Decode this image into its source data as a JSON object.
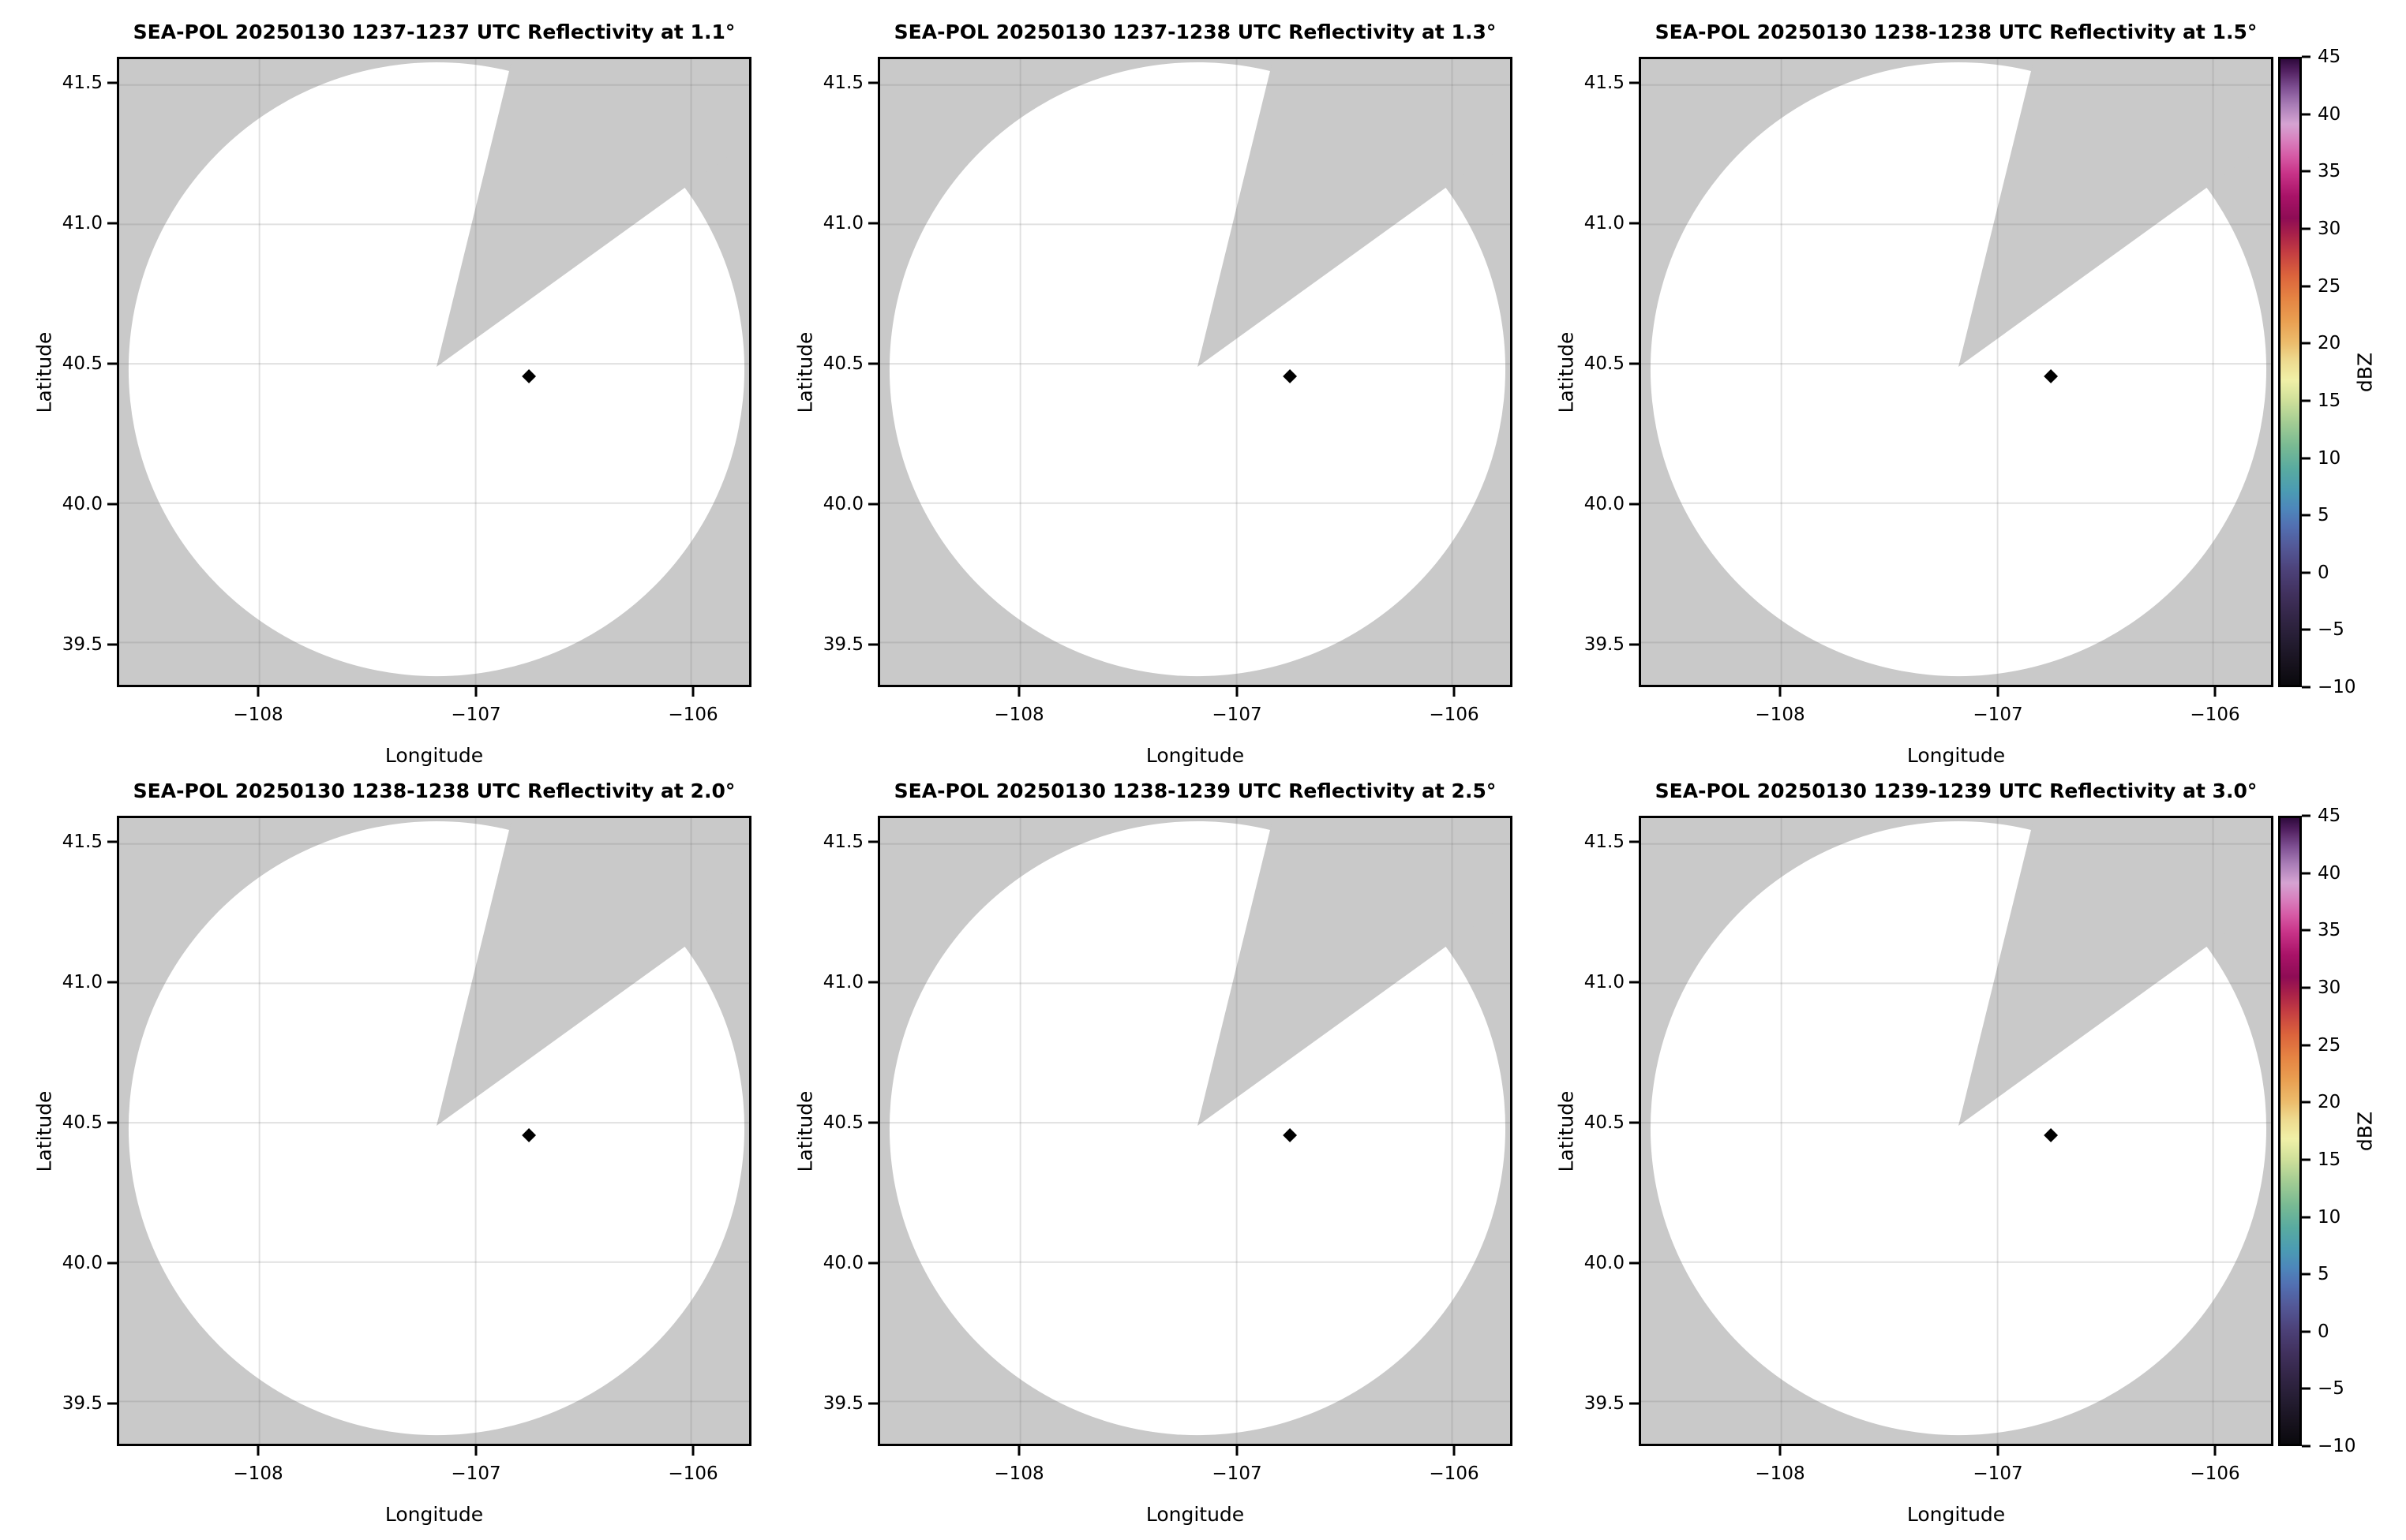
{
  "colors": {
    "figure_bg": "#ffffff",
    "nodata_gray": "#c9c9c9",
    "covered_white": "#ffffff",
    "spine": "#000000",
    "marker_black": "#000000",
    "grid_line": "rgba(120,120,120,0.22)"
  },
  "axes": {
    "xlabel": "Longitude",
    "ylabel": "Latitude",
    "lat_ticks": [
      "41.5",
      "41.0",
      "40.5",
      "40.0",
      "39.5"
    ],
    "lon_ticks": [
      "−108",
      "−107",
      "−106"
    ]
  },
  "panels": [
    {
      "title": "SEA-POL 20250130 1237-1237 UTC Reflectivity at 1.1°",
      "time_utc": "1237-1237",
      "elevation_deg": 1.1
    },
    {
      "title": "SEA-POL 20250130 1237-1238 UTC Reflectivity at 1.3°",
      "time_utc": "1237-1238",
      "elevation_deg": 1.3
    },
    {
      "title": "SEA-POL 20250130 1238-1238 UTC Reflectivity at 1.5°",
      "time_utc": "1238-1238",
      "elevation_deg": 1.5
    },
    {
      "title": "SEA-POL 20250130 1238-1238 UTC Reflectivity at 2.0°",
      "time_utc": "1238-1238",
      "elevation_deg": 2.0
    },
    {
      "title": "SEA-POL 20250130 1238-1239 UTC Reflectivity at 2.5°",
      "time_utc": "1238-1239",
      "elevation_deg": 2.5
    },
    {
      "title": "SEA-POL 20250130 1239-1239 UTC Reflectivity at 3.0°",
      "time_utc": "1239-1239",
      "elevation_deg": 3.0
    }
  ],
  "colorbar": {
    "label": "dBZ",
    "ticks": [
      "45",
      "40",
      "35",
      "30",
      "25",
      "20",
      "15",
      "10",
      "5",
      "0",
      "−5",
      "−10"
    ],
    "vmin": -10,
    "vmax": 45,
    "stops": [
      {
        "value": -10,
        "color": "#0a090d"
      },
      {
        "value": -8,
        "color": "#18131f"
      },
      {
        "value": -6,
        "color": "#251d33"
      },
      {
        "value": -4,
        "color": "#332647"
      },
      {
        "value": -2,
        "color": "#41315e"
      },
      {
        "value": 0,
        "color": "#4c4178"
      },
      {
        "value": 2,
        "color": "#535796"
      },
      {
        "value": 4,
        "color": "#5270b2"
      },
      {
        "value": 5.5,
        "color": "#4d87bb"
      },
      {
        "value": 7,
        "color": "#4b9bb3"
      },
      {
        "value": 9,
        "color": "#59aba0"
      },
      {
        "value": 11,
        "color": "#79ba93"
      },
      {
        "value": 13,
        "color": "#a2cc93"
      },
      {
        "value": 15,
        "color": "#cfe09a"
      },
      {
        "value": 16.8,
        "color": "#f0f0a7"
      },
      {
        "value": 18.5,
        "color": "#eeda8f"
      },
      {
        "value": 20,
        "color": "#ecbd6d"
      },
      {
        "value": 22,
        "color": "#e99f51"
      },
      {
        "value": 24,
        "color": "#e58343"
      },
      {
        "value": 26,
        "color": "#db633c"
      },
      {
        "value": 28,
        "color": "#c43d42"
      },
      {
        "value": 29.5,
        "color": "#aa2249"
      },
      {
        "value": 31,
        "color": "#8e0c55"
      },
      {
        "value": 33,
        "color": "#a91368"
      },
      {
        "value": 35,
        "color": "#c93489"
      },
      {
        "value": 36.5,
        "color": "#d65ba6"
      },
      {
        "value": 38,
        "color": "#d883c0"
      },
      {
        "value": 39.3,
        "color": "#d5a3d2"
      },
      {
        "value": 41,
        "color": "#a87cb6"
      },
      {
        "value": 42.5,
        "color": "#7e4f92"
      },
      {
        "value": 44,
        "color": "#512060"
      },
      {
        "value": 45,
        "color": "#2f0a3d"
      }
    ]
  },
  "chart_data": {
    "type": "heatmap",
    "subtype": "radar_ppi_reflectivity",
    "layout": "2 rows x 3 columns of PPI panels, one shared colorbar per row at right",
    "panels": [
      {
        "title": "SEA-POL 20250130 1237-1237 UTC Reflectivity at 1.1°",
        "radar": "SEA-POL",
        "date": "20250130",
        "time_utc": "1237-1237",
        "elevation_deg": 1.1
      },
      {
        "title": "SEA-POL 20250130 1237-1238 UTC Reflectivity at 1.3°",
        "radar": "SEA-POL",
        "date": "20250130",
        "time_utc": "1237-1238",
        "elevation_deg": 1.3
      },
      {
        "title": "SEA-POL 20250130 1238-1238 UTC Reflectivity at 1.5°",
        "radar": "SEA-POL",
        "date": "20250130",
        "time_utc": "1238-1238",
        "elevation_deg": 1.5
      },
      {
        "title": "SEA-POL 20250130 1238-1238 UTC Reflectivity at 2.0°",
        "radar": "SEA-POL",
        "date": "20250130",
        "time_utc": "1238-1238",
        "elevation_deg": 2.0
      },
      {
        "title": "SEA-POL 20250130 1238-1239 UTC Reflectivity at 2.5°",
        "radar": "SEA-POL",
        "date": "20250130",
        "time_utc": "1238-1239",
        "elevation_deg": 2.5
      },
      {
        "title": "SEA-POL 20250130 1239-1239 UTC Reflectivity at 3.0°",
        "radar": "SEA-POL",
        "date": "20250130",
        "time_utc": "1239-1239",
        "elevation_deg": 3.0
      }
    ],
    "xlabel": "Longitude",
    "ylabel": "Latitude",
    "xlim": [
      -108.65,
      -105.73
    ],
    "ylim": [
      39.34,
      41.59
    ],
    "xticks": [
      -108,
      -107,
      -106
    ],
    "yticks": [
      41.5,
      41.0,
      40.5,
      40.0,
      39.5
    ],
    "grid": true,
    "colorbar_label": "dBZ",
    "colorbar_range": [
      -10,
      45
    ],
    "colorbar_ticks": [
      45,
      40,
      35,
      30,
      25,
      20,
      15,
      10,
      5,
      0,
      -5,
      -10
    ],
    "radar_center": {
      "lon": -107.18,
      "lat": 40.49
    },
    "coverage_radius_deg": {
      "lon": 1.43,
      "lat": 1.1
    },
    "blocked_sector_azimuth_deg": [
      14,
      54
    ],
    "site_marker": {
      "lon": -106.75,
      "lat": 40.45,
      "shape": "diamond",
      "color": "#000000"
    },
    "reflectivity_echoes": "none visible in any panel; coverage disk is blank (white), out-of-coverage and blocked sector shown gray"
  }
}
